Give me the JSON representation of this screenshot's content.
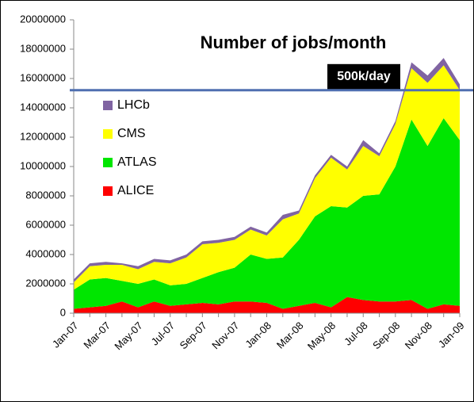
{
  "chart_data": {
    "type": "stacked_area",
    "title": "Number of jobs/month",
    "categories": [
      "Jan-07",
      null,
      "Mar-07",
      null,
      "May-07",
      null,
      "Jul-07",
      null,
      "Sep-07",
      null,
      "Nov-07",
      null,
      "Jan-08",
      null,
      "Mar-08",
      null,
      "May-08",
      null,
      "Jul-08",
      null,
      "Sep-08",
      null,
      "Nov-08",
      null,
      "Jan-09"
    ],
    "series": [
      {
        "name": "ALICE",
        "color": "#ff0000",
        "values": [
          300000,
          400000,
          500000,
          800000,
          400000,
          800000,
          500000,
          600000,
          700000,
          600000,
          800000,
          800000,
          700000,
          300000,
          500000,
          700000,
          400000,
          1100000,
          900000,
          800000,
          800000,
          900000,
          300000,
          600000,
          500000
        ]
      },
      {
        "name": "ATLAS",
        "color": "#00e600",
        "values": [
          1300000,
          1900000,
          1900000,
          1400000,
          1600000,
          1500000,
          1400000,
          1400000,
          1700000,
          2200000,
          2300000,
          3200000,
          3000000,
          3500000,
          4500000,
          5900000,
          6900000,
          6100000,
          7100000,
          7300000,
          9200000,
          12300000,
          11100000,
          12700000,
          11300000
        ]
      },
      {
        "name": "CMS",
        "color": "#ffff00",
        "values": [
          500000,
          900000,
          900000,
          1100000,
          1000000,
          1200000,
          1500000,
          1800000,
          2300000,
          2000000,
          1900000,
          1700000,
          1600000,
          2600000,
          1800000,
          2600000,
          3300000,
          2600000,
          3400000,
          2600000,
          2900000,
          3500000,
          4300000,
          3600000,
          3400000
        ]
      },
      {
        "name": "LHCb",
        "color": "#8064a2",
        "values": [
          200000,
          200000,
          200000,
          100000,
          200000,
          200000,
          200000,
          200000,
          200000,
          200000,
          200000,
          200000,
          200000,
          300000,
          200000,
          200000,
          200000,
          200000,
          400000,
          200000,
          200000,
          400000,
          500000,
          500000,
          400000
        ]
      }
    ],
    "ylim": [
      0,
      20000000
    ],
    "yticks": [
      0,
      2000000,
      4000000,
      6000000,
      8000000,
      10000000,
      12000000,
      14000000,
      16000000,
      18000000,
      20000000
    ],
    "annotation": {
      "text": "500k/day",
      "value": 15200000,
      "color": "#4f6fb0"
    }
  }
}
